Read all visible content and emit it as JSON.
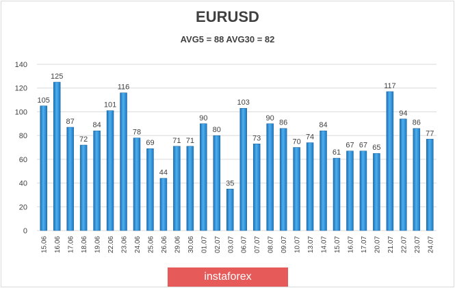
{
  "chart_data": {
    "type": "bar",
    "title": "EURUSD",
    "subtitle": "AVG5 = 88 AVG30 = 82",
    "xlabel": "",
    "ylabel": "",
    "ylim": [
      0,
      140
    ],
    "yticks": [
      0,
      20,
      40,
      60,
      80,
      100,
      120,
      140
    ],
    "grid": true,
    "categories": [
      "15.06",
      "16.06",
      "17.06",
      "18.06",
      "19.06",
      "22.06",
      "23.06",
      "24.06",
      "25.06",
      "26.06",
      "29.06",
      "30.06",
      "01.07",
      "02.07",
      "03.07",
      "06.07",
      "07.07",
      "08.07",
      "09.07",
      "10.07",
      "13.07",
      "14.07",
      "15.07",
      "16.07",
      "17.07",
      "20.07",
      "21.07",
      "22.07",
      "23.07",
      "24.07"
    ],
    "values": [
      105,
      125,
      87,
      72,
      84,
      101,
      116,
      78,
      69,
      44,
      71,
      71,
      90,
      80,
      35,
      103,
      73,
      90,
      86,
      70,
      74,
      84,
      61,
      67,
      67,
      65,
      117,
      94,
      86,
      77
    ],
    "bar_color": "#2e8fd6"
  },
  "watermark": "instaforex"
}
